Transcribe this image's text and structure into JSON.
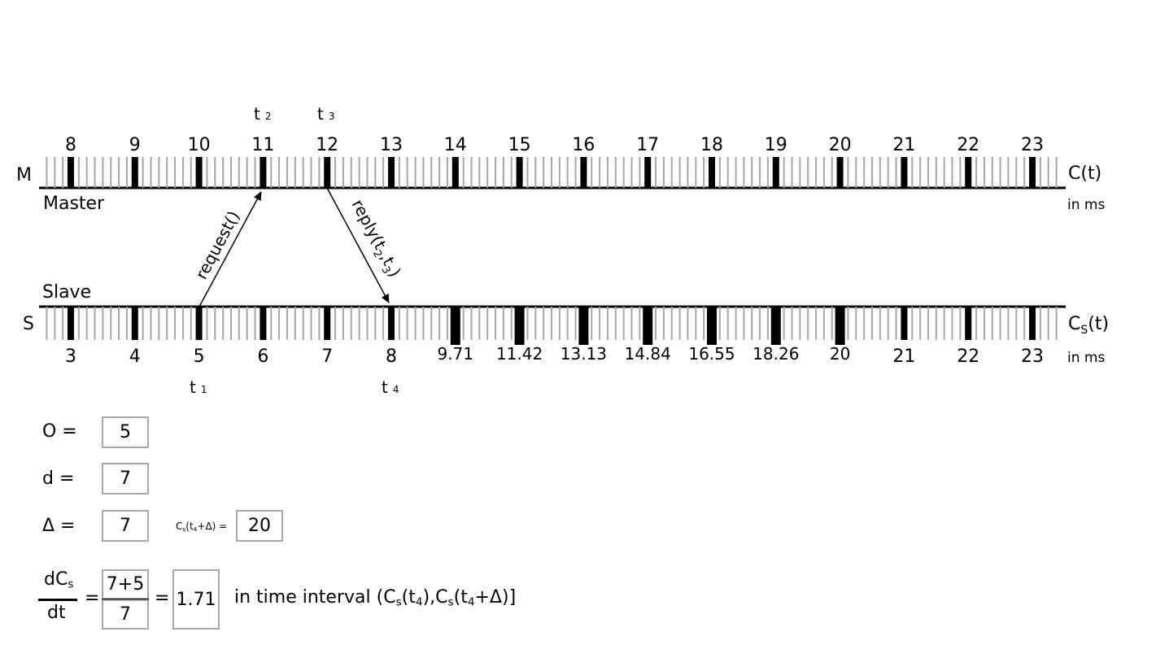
{
  "master": {
    "row_letter": "M",
    "name": "Master",
    "clock_label": "C(t)",
    "unit": "in ms",
    "major_labels": [
      "8",
      "9",
      "10",
      "11",
      "12",
      "13",
      "14",
      "15",
      "16",
      "17",
      "18",
      "19",
      "20",
      "21",
      "22",
      "23"
    ]
  },
  "slave": {
    "row_letter": "S",
    "name": "Slave",
    "clock_label_main": "C",
    "clock_label_sub": "S",
    "clock_label_tail": "(t)",
    "unit": "in ms",
    "major_labels": [
      "3",
      "4",
      "5",
      "6",
      "7",
      "8",
      "9.71",
      "11.42",
      "13.13",
      "14.84",
      "16.55",
      "18.26",
      "20",
      "21",
      "22",
      "23"
    ]
  },
  "events": {
    "t1": {
      "main": "t",
      "sub": "1"
    },
    "t2": {
      "main": "t",
      "sub": "2"
    },
    "t3": {
      "main": "t",
      "sub": "3"
    },
    "t4": {
      "main": "t",
      "sub": "4"
    }
  },
  "messages": {
    "request": "request()",
    "reply_main": "reply(t",
    "reply_sub1": "2",
    "reply_comma": ",t",
    "reply_sub2": "3",
    "reply_close": ")"
  },
  "formulas": {
    "offset_label": "O =",
    "offset_value": "5",
    "delay_label": "d =",
    "delay_value": "7",
    "delta_label": "Δ =",
    "delta_value": "7",
    "cs_label_main": "C",
    "cs_label_sub": "s",
    "cs_label_paren": "(t",
    "cs_label_sub4": "4",
    "cs_label_tail": "+Δ) =",
    "cs_value": "20",
    "rate_num_main": "dC",
    "rate_num_sub": "s",
    "rate_den": "dt",
    "eq1": "=",
    "frac_num": "7+5",
    "frac_den": "7",
    "eq2": "=",
    "rate_value": "1.71",
    "interval_a": "in time interval (C",
    "interval_sub1": "s",
    "interval_b": "(t",
    "interval_sub2": "4",
    "interval_c": "),C",
    "interval_sub3": "s",
    "interval_d": "(t",
    "interval_sub4": "4",
    "interval_e": "+Δ)]"
  }
}
